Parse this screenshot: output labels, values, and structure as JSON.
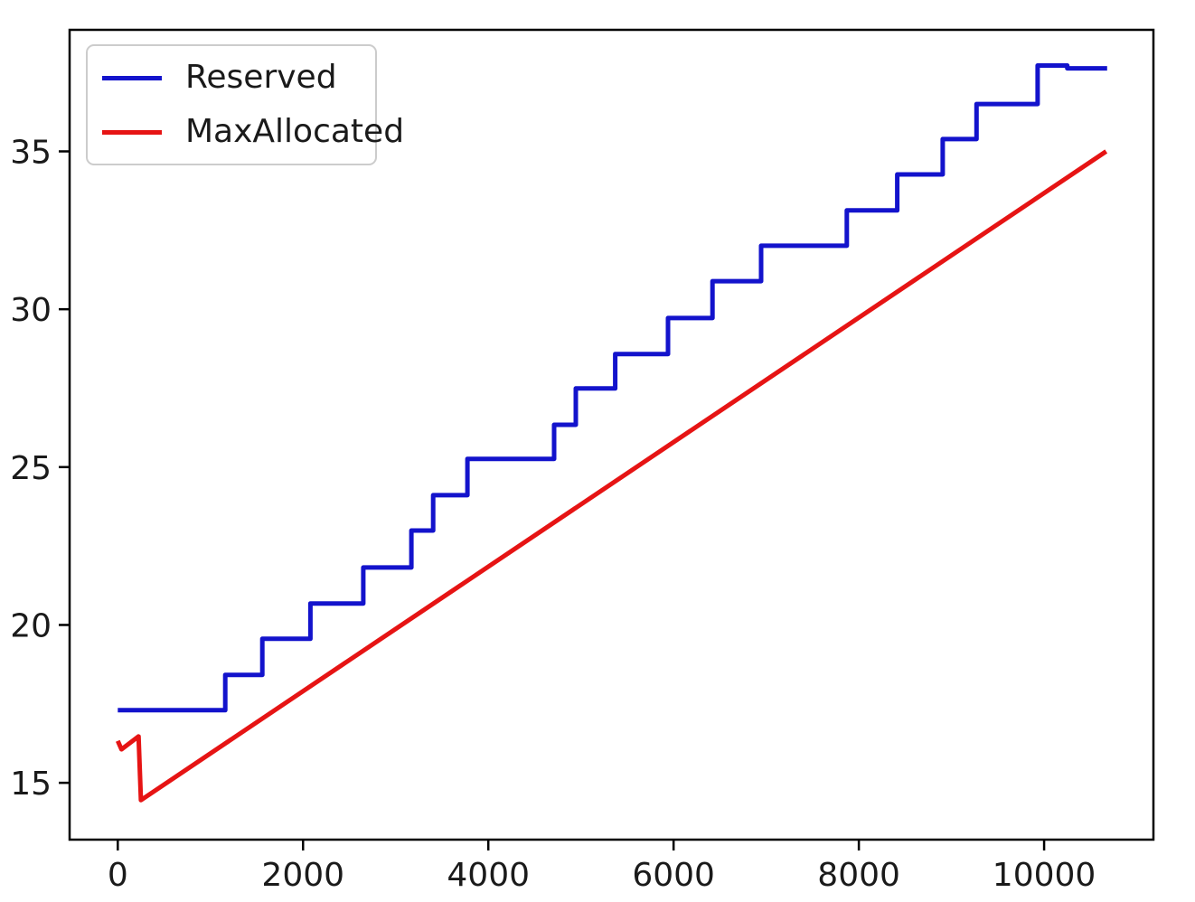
{
  "figure": {
    "background": "#ffffff",
    "text_color": "#1a1a1a",
    "spine_color": "#000000"
  },
  "chart_data": {
    "type": "line",
    "title": "",
    "xlabel": "",
    "ylabel": "",
    "grid": false,
    "legend_position": "upper-left",
    "x_ticks": [
      0,
      2000,
      4000,
      6000,
      8000,
      10000
    ],
    "y_ticks": [
      15,
      20,
      25,
      30,
      35
    ],
    "xlim": [
      -520,
      11180
    ],
    "ylim": [
      13.2,
      38.85
    ],
    "series": [
      {
        "name": "Reserved",
        "color": "#1313cc",
        "style": "step-post",
        "step_x": [
          0,
          1160,
          1560,
          2080,
          2650,
          3170,
          3405,
          3775,
          4710,
          4945,
          5370,
          5940,
          6420,
          6945,
          7870,
          8415,
          8905,
          9270,
          9930,
          10250,
          10680
        ],
        "step_y": [
          17.3,
          18.42,
          19.56,
          20.68,
          21.82,
          22.99,
          24.11,
          25.26,
          26.34,
          27.49,
          28.58,
          29.72,
          30.89,
          32.01,
          33.13,
          34.27,
          35.39,
          36.5,
          37.72,
          37.63
        ]
      },
      {
        "name": "MaxAllocated",
        "color": "#e61414",
        "style": "line",
        "points": [
          [
            0,
            16.33
          ],
          [
            40,
            16.06
          ],
          [
            225,
            16.47
          ],
          [
            250,
            14.45
          ],
          [
            10670,
            35.0
          ]
        ]
      }
    ]
  }
}
